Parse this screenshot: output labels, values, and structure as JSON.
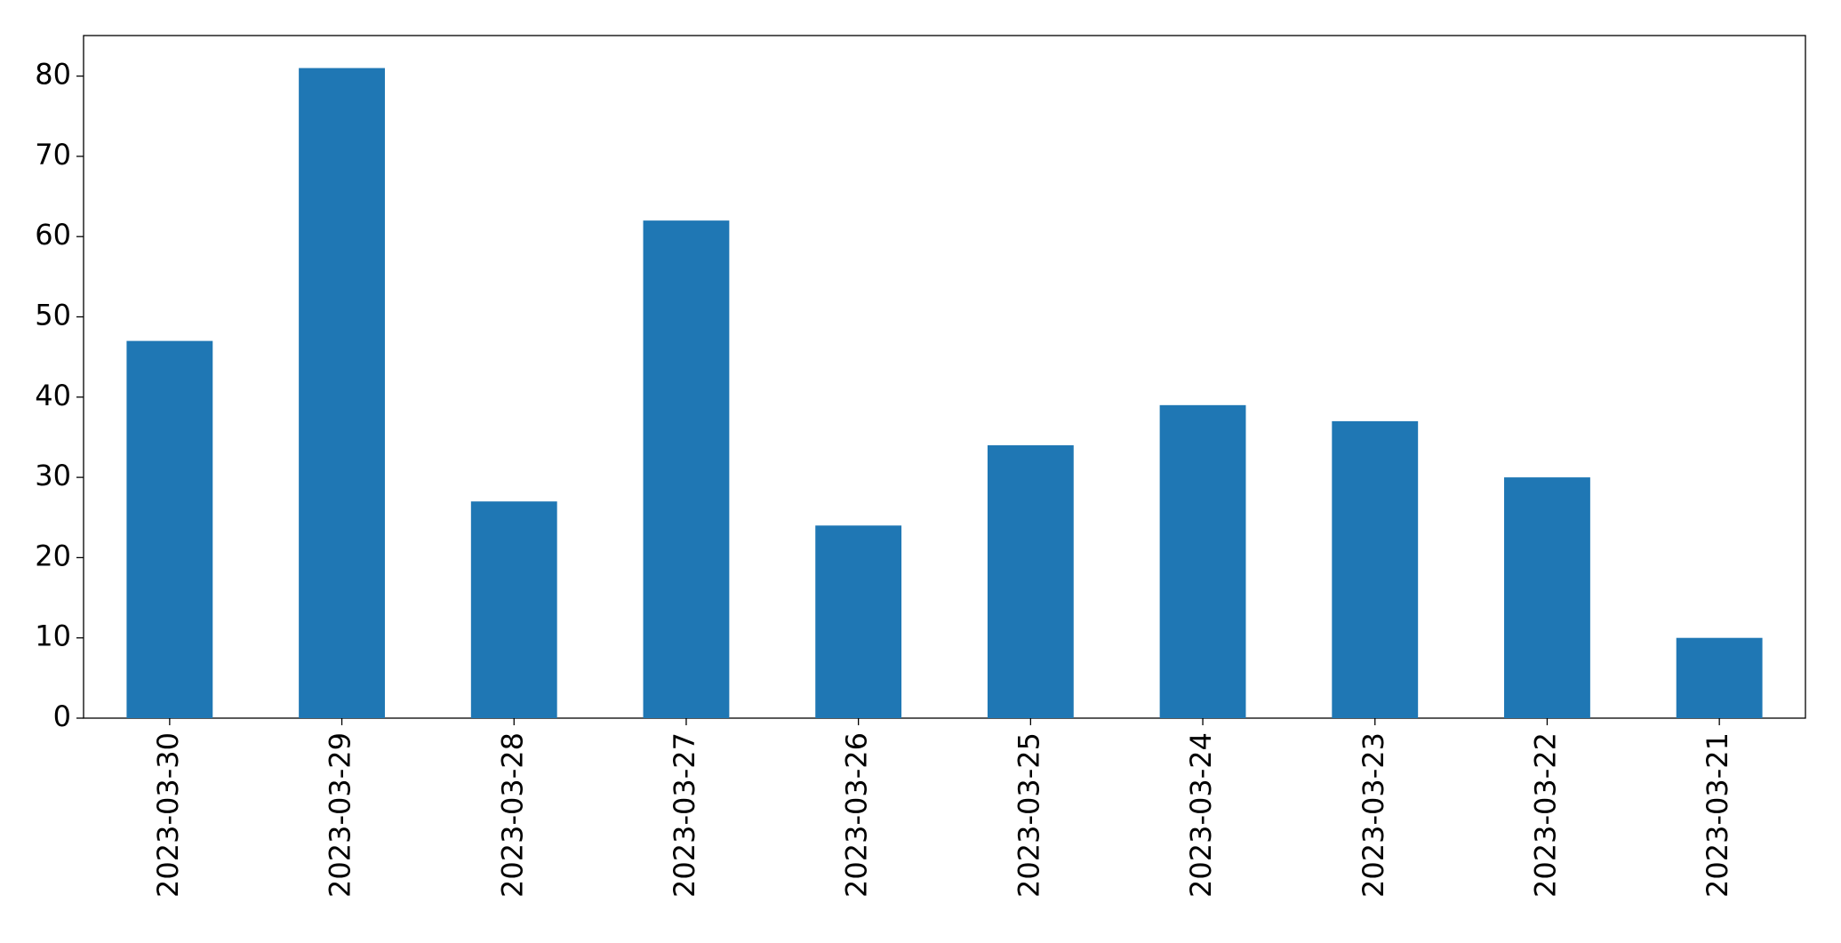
{
  "chart_data": {
    "type": "bar",
    "categories": [
      "2023-03-30",
      "2023-03-29",
      "2023-03-28",
      "2023-03-27",
      "2023-03-26",
      "2023-03-25",
      "2023-03-24",
      "2023-03-23",
      "2023-03-22",
      "2023-03-21"
    ],
    "values": [
      47,
      81,
      27,
      62,
      24,
      34,
      39,
      37,
      30,
      10
    ],
    "color": "#1f77b4",
    "ylim": [
      0,
      85.05
    ],
    "yticks": [
      0,
      10,
      20,
      30,
      40,
      50,
      60,
      70,
      80
    ],
    "grid": false
  }
}
